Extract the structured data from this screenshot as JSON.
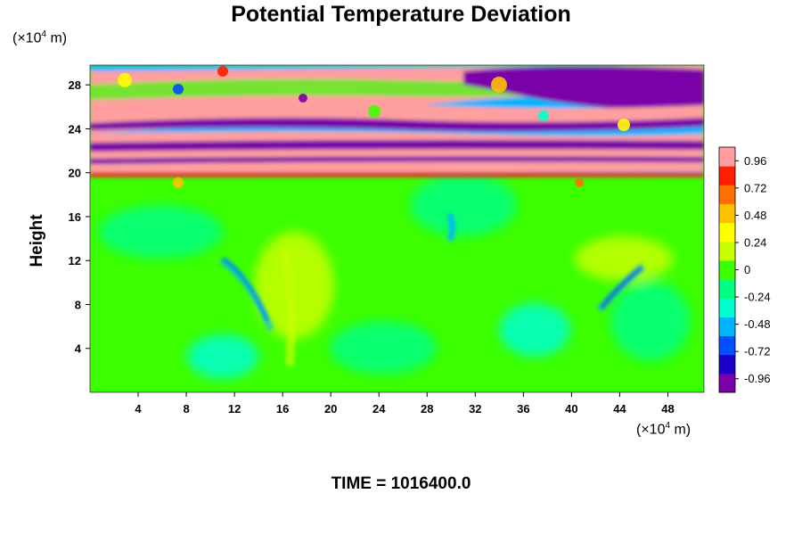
{
  "chart_data": {
    "type": "heatmap",
    "title": "Potential Temperature Deviation",
    "ylabel": "Height",
    "x_unit": "(×10",
    "x_unit_exp": "4",
    "x_unit_tail": " m)",
    "y_unit": "(×10",
    "y_unit_exp": "4",
    "y_unit_tail": " m)",
    "xlim": [
      0,
      51
    ],
    "ylim": [
      0,
      29.8
    ],
    "x_ticks": [
      4,
      8,
      12,
      16,
      20,
      24,
      28,
      32,
      36,
      40,
      44,
      48
    ],
    "y_ticks": [
      4,
      8,
      12,
      16,
      20,
      24,
      28
    ],
    "colorbar": {
      "min": -1.08,
      "max": 1.08,
      "ticks": [
        0.96,
        0.72,
        0.48,
        0.24,
        0,
        -0.24,
        -0.48,
        -0.72,
        -0.96
      ],
      "tick_labels": [
        "0.96",
        "0.72",
        "0.48",
        "0.24",
        "0",
        "-0.24",
        "-0.48",
        "-0.72",
        "-0.96"
      ],
      "colors": [
        "#7a00a8",
        "#1a00c8",
        "#0050ff",
        "#00b4ff",
        "#00ffd0",
        "#00ff80",
        "#3cff00",
        "#c8ff00",
        "#ffff00",
        "#ffc000",
        "#ff7000",
        "#ff2000",
        "#ff9fa0"
      ]
    },
    "annotations": {
      "time_label": "TIME = 1016400.0"
    }
  }
}
